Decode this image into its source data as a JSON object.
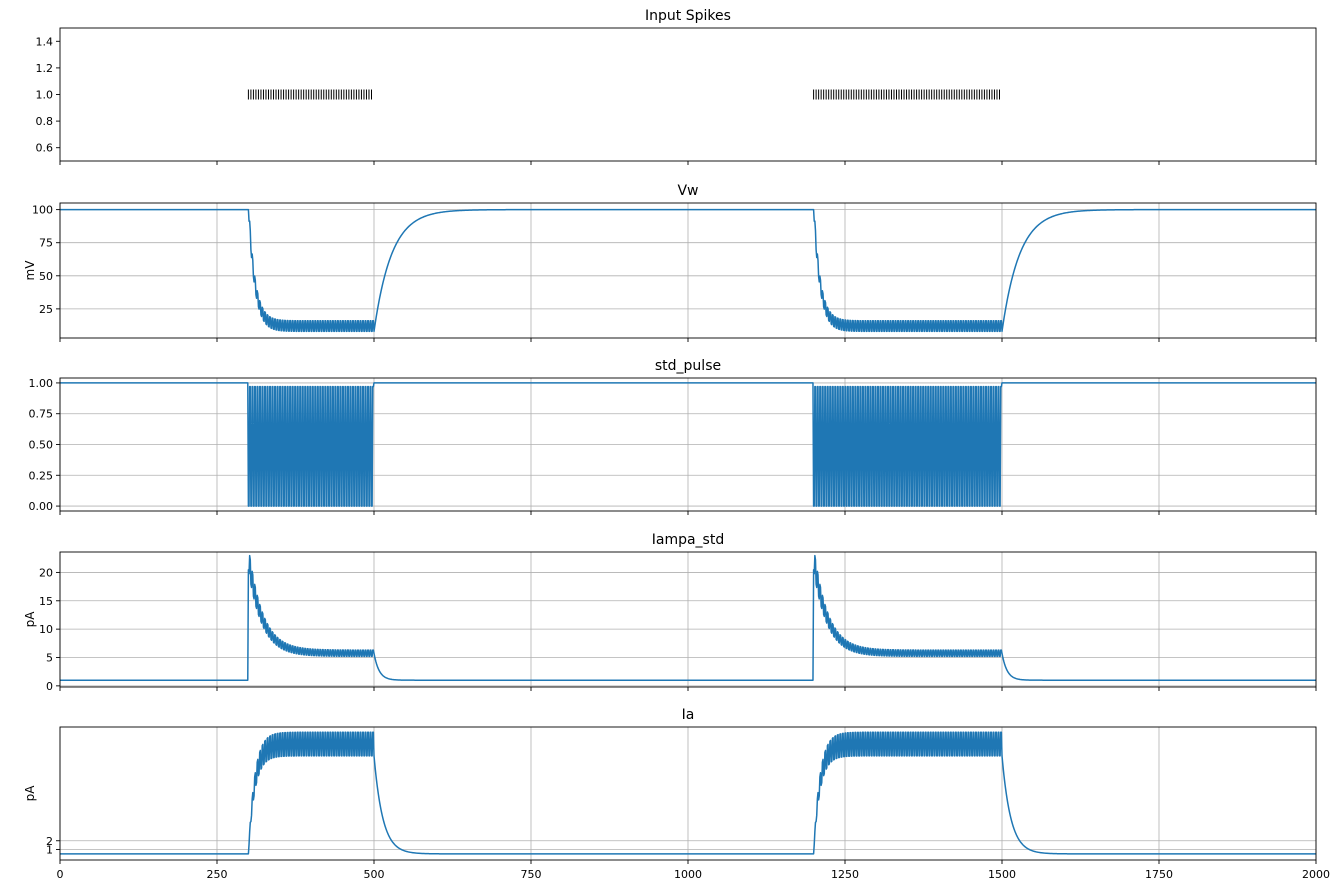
{
  "figure": {
    "xlim": [
      0,
      2000
    ],
    "x_ticks": [
      0,
      250,
      500,
      750,
      1000,
      1250,
      1500,
      1750,
      2000
    ],
    "x_tick_labels": [
      "0",
      "250",
      "500",
      "750",
      "1000",
      "1250",
      "1500",
      "1750",
      "2000"
    ]
  },
  "chart_data": [
    {
      "type": "scatter",
      "title": "Input Spikes",
      "ylabel": "",
      "ylim": [
        0.5,
        1.5
      ],
      "y_ticks": [
        0.6,
        0.8,
        1.0,
        1.2,
        1.4
      ],
      "y_tick_labels": [
        "0.6",
        "0.8",
        "1.0",
        "1.2",
        "1.4"
      ],
      "grid": false,
      "marker": "|",
      "color": "#000000",
      "spike_trains": [
        {
          "start": 300,
          "end": 500,
          "count": 50,
          "y": 1.0
        },
        {
          "start": 1200,
          "end": 1500,
          "count": 75,
          "y": 1.0
        }
      ]
    },
    {
      "type": "line",
      "title": "Vw",
      "ylabel": "mV",
      "ylim": [
        3,
        105
      ],
      "y_ticks": [
        25,
        50,
        75,
        100
      ],
      "y_tick_labels": [
        "25",
        "50",
        "75",
        "100"
      ],
      "grid": true,
      "color": "#1f77b4",
      "baseline": 100,
      "steady_low": 8,
      "steady_high": 16,
      "bursts": [
        {
          "start": 300,
          "end": 500
        },
        {
          "start": 1200,
          "end": 1500
        }
      ]
    },
    {
      "type": "line",
      "title": "std_pulse",
      "ylabel": "",
      "ylim": [
        -0.04,
        1.04
      ],
      "y_ticks": [
        0.0,
        0.25,
        0.5,
        0.75,
        1.0
      ],
      "y_tick_labels": [
        "0.00",
        "0.25",
        "0.50",
        "0.75",
        "1.00"
      ],
      "grid": true,
      "color": "#1f77b4",
      "baseline": 1.0,
      "pulse_low": 0.0,
      "bursts": [
        {
          "start": 300,
          "end": 500
        },
        {
          "start": 1200,
          "end": 1500
        }
      ]
    },
    {
      "type": "line",
      "title": "Iampa_std",
      "ylabel": "pA",
      "ylim": [
        -0.2,
        23.6
      ],
      "y_ticks": [
        0,
        5,
        10,
        15,
        20
      ],
      "y_tick_labels": [
        "0",
        "5",
        "10",
        "15",
        "20"
      ],
      "grid": true,
      "color": "#1f77b4",
      "baseline": 1.0,
      "peak": 22.5,
      "steady_low": 5.2,
      "steady_high": 6.3,
      "bursts": [
        {
          "start": 300,
          "end": 500
        },
        {
          "start": 1200,
          "end": 1500
        }
      ]
    },
    {
      "type": "line",
      "title": "Ia",
      "ylabel": "pA",
      "ylim": [
        -0.2,
        15.0
      ],
      "y_ticks": [
        1,
        2
      ],
      "y_tick_labels": [
        "1",
        "2"
      ],
      "grid": true,
      "color": "#1f77b4",
      "baseline": 0.5,
      "steady_low": 11.7,
      "steady_high": 14.4,
      "bursts": [
        {
          "start": 300,
          "end": 500
        },
        {
          "start": 1200,
          "end": 1500
        }
      ]
    }
  ]
}
